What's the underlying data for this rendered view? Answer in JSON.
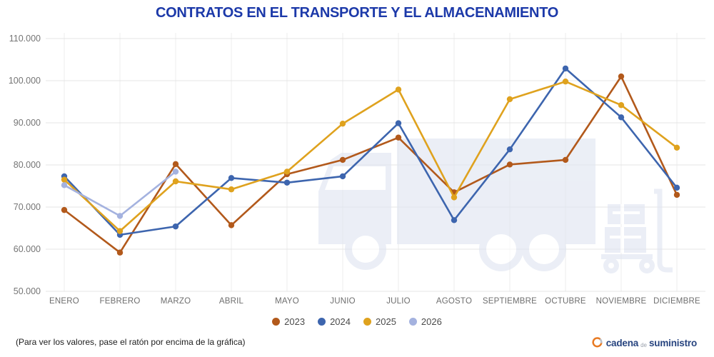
{
  "title": "CONTRATOS EN EL TRANSPORTE Y EL ALMACENAMIENTO",
  "footer": {
    "note": "(Para ver los valores, pase el ratón por encima de la gráfica)"
  },
  "brand": {
    "word1": "cadena",
    "word2": "de",
    "word3": "suministro"
  },
  "colors": {
    "title": "#1c39a9",
    "axis_text": "#757575",
    "month_text": "#6e6e6e",
    "grid_horizontal": "#e4e4e4",
    "grid_vertical": "#ededed",
    "watermark": "#e7ebf4",
    "logo_blue": "#27447f",
    "logo_orange": "#e87a22",
    "logo_gray": "#bcc1ca"
  },
  "chart_data": {
    "type": "line",
    "title": "CONTRATOS EN EL TRANSPORTE Y EL ALMACENAMIENTO",
    "categories": [
      "ENERO",
      "FEBRERO",
      "MARZO",
      "ABRIL",
      "MAYO",
      "JUNIO",
      "JULIO",
      "AGOSTO",
      "SEPTIEMBRE",
      "OCTUBRE",
      "NOVIEMBRE",
      "DICIEMBRE"
    ],
    "series": [
      {
        "name": "2023",
        "color": "#b2591b",
        "values": [
          69300,
          59200,
          80200,
          65700,
          77800,
          81200,
          86500,
          73500,
          80100,
          81200,
          101000,
          72900
        ]
      },
      {
        "name": "2024",
        "color": "#3d65ae",
        "values": [
          77300,
          63400,
          65400,
          76900,
          75800,
          77300,
          89900,
          66900,
          83700,
          102900,
          91300,
          74600
        ]
      },
      {
        "name": "2025",
        "color": "#dfa21e",
        "values": [
          76500,
          64300,
          76100,
          74200,
          78400,
          89800,
          97900,
          72300,
          95600,
          99800,
          94200,
          84100
        ]
      },
      {
        "name": "2026",
        "color": "#a4b2df",
        "values": [
          75200,
          67900,
          78400,
          null,
          null,
          null,
          null,
          null,
          null,
          null,
          null,
          null
        ]
      }
    ],
    "ylim": [
      50000,
      110000
    ],
    "ytick_step": 10000,
    "ytick_labels": [
      "50.000",
      "60.000",
      "70.000",
      "80.000",
      "90.000",
      "100.000",
      "110.000"
    ],
    "grid": true,
    "legend_position": "bottom",
    "xlabel": "",
    "ylabel": ""
  }
}
